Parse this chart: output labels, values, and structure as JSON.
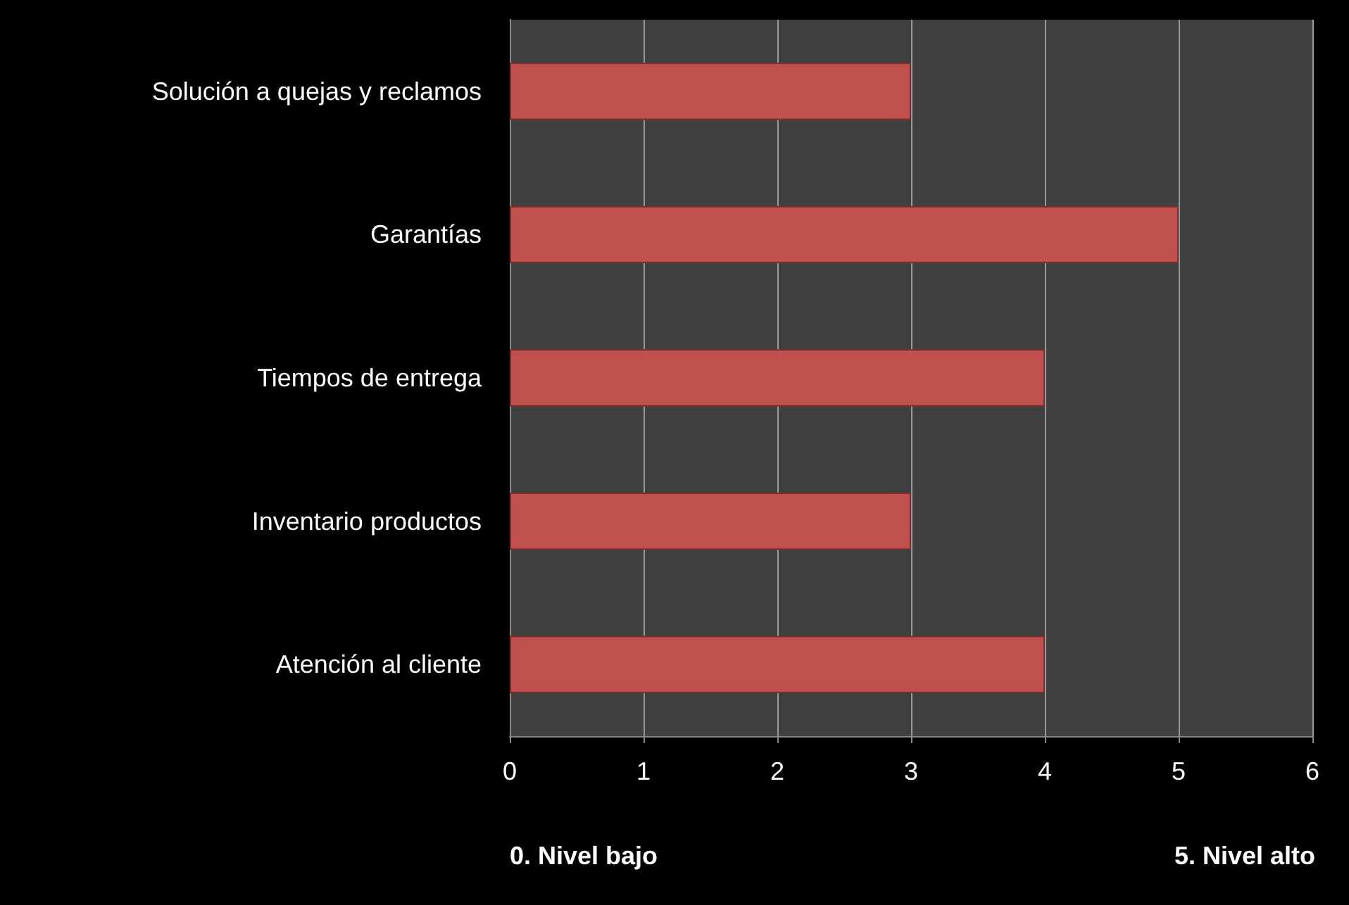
{
  "chart_data": {
    "type": "bar",
    "orientation": "horizontal",
    "categories": [
      "Solución a quejas y reclamos",
      "Garantías",
      "Tiempos de entrega",
      "Inventario productos",
      "Atención al cliente"
    ],
    "values": [
      3,
      5,
      4,
      3,
      4
    ],
    "color": "#c0504d",
    "xlim": [
      0,
      6
    ],
    "xticks": [
      0,
      1,
      2,
      3,
      4,
      5,
      6
    ],
    "grid": "x",
    "annotations": [
      "0. Nivel bajo",
      "5. Nivel alto"
    ]
  }
}
